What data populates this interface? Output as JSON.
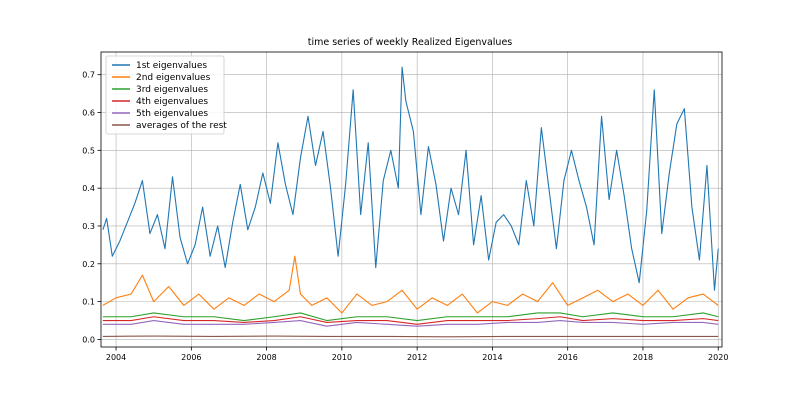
{
  "chart_data": {
    "type": "line",
    "title": "time series of weekly Realized Eigenvalues",
    "xlabel": "",
    "ylabel": "",
    "xlim": [
      2003.6,
      2020.1
    ],
    "ylim": [
      -0.02,
      0.76
    ],
    "x_ticks": [
      2004,
      2006,
      2008,
      2010,
      2012,
      2014,
      2016,
      2018,
      2020
    ],
    "y_ticks": [
      0.0,
      0.1,
      0.2,
      0.3,
      0.4,
      0.5,
      0.6,
      0.7
    ],
    "x_tick_labels": [
      "2004",
      "2006",
      "2008",
      "2010",
      "2012",
      "2014",
      "2016",
      "2018",
      "2020"
    ],
    "y_tick_labels": [
      "0.0",
      "0.1",
      "0.2",
      "0.3",
      "0.4",
      "0.5",
      "0.6",
      "0.7"
    ],
    "grid": true,
    "legend_position": "upper-left",
    "series": [
      {
        "name": "1st eigenvalues",
        "color": "#1f77b4",
        "x": [
          2003.65,
          2003.75,
          2003.9,
          2004.1,
          2004.3,
          2004.5,
          2004.7,
          2004.9,
          2005.1,
          2005.3,
          2005.5,
          2005.7,
          2005.9,
          2006.1,
          2006.3,
          2006.5,
          2006.7,
          2006.9,
          2007.1,
          2007.3,
          2007.5,
          2007.7,
          2007.9,
          2008.1,
          2008.3,
          2008.5,
          2008.7,
          2008.9,
          2009.1,
          2009.3,
          2009.5,
          2009.7,
          2009.9,
          2010.1,
          2010.3,
          2010.5,
          2010.7,
          2010.9,
          2011.1,
          2011.3,
          2011.5,
          2011.6,
          2011.7,
          2011.9,
          2012.1,
          2012.3,
          2012.5,
          2012.7,
          2012.9,
          2013.1,
          2013.3,
          2013.5,
          2013.7,
          2013.9,
          2014.1,
          2014.3,
          2014.5,
          2014.7,
          2014.9,
          2015.1,
          2015.3,
          2015.5,
          2015.7,
          2015.9,
          2016.1,
          2016.3,
          2016.5,
          2016.7,
          2016.9,
          2017.1,
          2017.3,
          2017.5,
          2017.7,
          2017.9,
          2018.1,
          2018.3,
          2018.5,
          2018.7,
          2018.9,
          2019.1,
          2019.3,
          2019.5,
          2019.7,
          2019.9,
          2020.0
        ],
        "values": [
          0.29,
          0.32,
          0.22,
          0.26,
          0.31,
          0.36,
          0.42,
          0.28,
          0.33,
          0.24,
          0.43,
          0.27,
          0.2,
          0.25,
          0.35,
          0.22,
          0.3,
          0.19,
          0.31,
          0.41,
          0.29,
          0.35,
          0.44,
          0.36,
          0.52,
          0.41,
          0.33,
          0.48,
          0.59,
          0.46,
          0.55,
          0.4,
          0.22,
          0.41,
          0.66,
          0.33,
          0.52,
          0.19,
          0.42,
          0.5,
          0.4,
          0.72,
          0.63,
          0.55,
          0.33,
          0.51,
          0.41,
          0.26,
          0.4,
          0.33,
          0.5,
          0.25,
          0.38,
          0.21,
          0.31,
          0.33,
          0.3,
          0.25,
          0.42,
          0.3,
          0.56,
          0.4,
          0.24,
          0.42,
          0.5,
          0.42,
          0.35,
          0.25,
          0.59,
          0.37,
          0.5,
          0.38,
          0.24,
          0.15,
          0.34,
          0.66,
          0.28,
          0.44,
          0.57,
          0.61,
          0.35,
          0.21,
          0.46,
          0.13,
          0.24
        ]
      },
      {
        "name": "2nd eigenvalues",
        "color": "#ff7f0e",
        "x": [
          2003.65,
          2004.0,
          2004.4,
          2004.7,
          2005.0,
          2005.4,
          2005.8,
          2006.2,
          2006.6,
          2007.0,
          2007.4,
          2007.8,
          2008.2,
          2008.6,
          2008.75,
          2008.9,
          2009.2,
          2009.6,
          2010.0,
          2010.4,
          2010.8,
          2011.2,
          2011.6,
          2012.0,
          2012.4,
          2012.8,
          2013.2,
          2013.6,
          2014.0,
          2014.4,
          2014.8,
          2015.2,
          2015.6,
          2016.0,
          2016.4,
          2016.8,
          2017.2,
          2017.6,
          2018.0,
          2018.4,
          2018.8,
          2019.2,
          2019.6,
          2020.0
        ],
        "values": [
          0.09,
          0.11,
          0.12,
          0.17,
          0.1,
          0.14,
          0.09,
          0.12,
          0.08,
          0.11,
          0.09,
          0.12,
          0.1,
          0.13,
          0.22,
          0.12,
          0.09,
          0.11,
          0.07,
          0.12,
          0.09,
          0.1,
          0.13,
          0.08,
          0.11,
          0.09,
          0.12,
          0.07,
          0.1,
          0.09,
          0.12,
          0.1,
          0.15,
          0.09,
          0.11,
          0.13,
          0.1,
          0.12,
          0.09,
          0.13,
          0.08,
          0.11,
          0.12,
          0.09
        ]
      },
      {
        "name": "3rd eigenvalues",
        "color": "#2ca02c",
        "x": [
          2003.65,
          2004.4,
          2005.0,
          2005.8,
          2006.6,
          2007.4,
          2008.2,
          2008.9,
          2009.6,
          2010.4,
          2011.2,
          2012.0,
          2012.8,
          2013.6,
          2014.4,
          2015.2,
          2015.8,
          2016.4,
          2017.2,
          2018.0,
          2018.8,
          2019.6,
          2020.0
        ],
        "values": [
          0.06,
          0.06,
          0.07,
          0.06,
          0.06,
          0.05,
          0.06,
          0.07,
          0.05,
          0.06,
          0.06,
          0.05,
          0.06,
          0.06,
          0.06,
          0.07,
          0.07,
          0.06,
          0.07,
          0.06,
          0.06,
          0.07,
          0.06
        ]
      },
      {
        "name": "4th eigenvalues",
        "color": "#d62728",
        "x": [
          2003.65,
          2004.4,
          2005.0,
          2005.8,
          2006.6,
          2007.4,
          2008.2,
          2008.9,
          2009.6,
          2010.4,
          2011.2,
          2012.0,
          2012.8,
          2013.6,
          2014.4,
          2015.2,
          2015.8,
          2016.4,
          2017.2,
          2018.0,
          2018.8,
          2019.6,
          2020.0
        ],
        "values": [
          0.05,
          0.05,
          0.06,
          0.05,
          0.05,
          0.045,
          0.05,
          0.06,
          0.045,
          0.05,
          0.05,
          0.04,
          0.05,
          0.05,
          0.05,
          0.055,
          0.06,
          0.05,
          0.055,
          0.05,
          0.05,
          0.055,
          0.05
        ]
      },
      {
        "name": "5th eigenvalues",
        "color": "#9467bd",
        "x": [
          2003.65,
          2004.4,
          2005.0,
          2005.8,
          2006.6,
          2007.4,
          2008.2,
          2008.9,
          2009.6,
          2010.4,
          2011.2,
          2012.0,
          2012.8,
          2013.6,
          2014.4,
          2015.2,
          2015.8,
          2016.4,
          2017.2,
          2018.0,
          2018.8,
          2019.6,
          2020.0
        ],
        "values": [
          0.04,
          0.04,
          0.05,
          0.04,
          0.04,
          0.04,
          0.045,
          0.05,
          0.035,
          0.045,
          0.04,
          0.035,
          0.04,
          0.04,
          0.045,
          0.045,
          0.05,
          0.045,
          0.045,
          0.04,
          0.045,
          0.045,
          0.04
        ]
      },
      {
        "name": "averages of the rest",
        "color": "#8c564b",
        "x": [
          2003.65,
          2005.0,
          2006.6,
          2008.2,
          2009.6,
          2011.2,
          2012.8,
          2014.4,
          2016.0,
          2017.6,
          2019.2,
          2020.0
        ],
        "values": [
          0.008,
          0.009,
          0.008,
          0.009,
          0.008,
          0.008,
          0.007,
          0.008,
          0.008,
          0.008,
          0.008,
          0.008
        ]
      }
    ]
  }
}
